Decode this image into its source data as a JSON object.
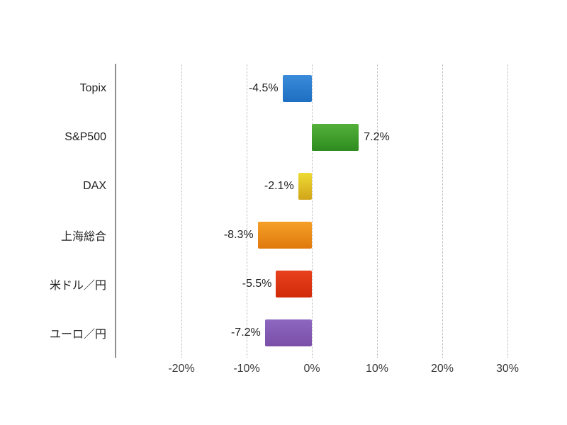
{
  "chart_data": {
    "type": "bar",
    "orientation": "horizontal",
    "title": "",
    "categories": [
      "Topix",
      "S&P500",
      "DAX",
      "上海総合",
      "米ドル／円",
      "ユーロ／円"
    ],
    "values": [
      -4.5,
      7.2,
      -2.1,
      -8.3,
      -5.5,
      -7.2
    ],
    "value_labels": [
      "-4.5%",
      "7.2%",
      "-2.1%",
      "-8.3%",
      "-5.5%",
      "-7.2%"
    ],
    "series": [
      {
        "name": "Topix",
        "value": -4.5,
        "label": "-4.5%",
        "color_top": "#3a8bd9",
        "color_bottom": "#1e6ec2"
      },
      {
        "name": "S&P500",
        "value": 7.2,
        "label": "7.2%",
        "color_top": "#54b039",
        "color_bottom": "#2e8c20"
      },
      {
        "name": "DAX",
        "value": -2.1,
        "label": "-2.1%",
        "color_top": "#eeda33",
        "color_bottom": "#d1a519"
      },
      {
        "name": "上海総合",
        "value": -8.3,
        "label": "-8.3%",
        "color_top": "#f5a027",
        "color_bottom": "#e0790d"
      },
      {
        "name": "米ドル／円",
        "value": -5.5,
        "label": "-5.5%",
        "color_top": "#e8421e",
        "color_bottom": "#d02a0a"
      },
      {
        "name": "ユーロ／円",
        "value": -7.2,
        "label": "-7.2%",
        "color_top": "#8d67c0",
        "color_bottom": "#7a4fa7"
      }
    ],
    "x_ticks": [
      {
        "label": "-20%",
        "value": -20
      },
      {
        "label": "-10%",
        "value": -10
      },
      {
        "label": "0%",
        "value": 0
      },
      {
        "label": "10%",
        "value": 10
      },
      {
        "label": "20%",
        "value": 20
      },
      {
        "label": "30%",
        "value": 30
      }
    ],
    "xlim": [
      -30.2,
      33
    ],
    "grid": "vertical-dotted",
    "legend": "none",
    "xlabel": "",
    "ylabel": "",
    "colors": {
      "axis": "#909090",
      "grid": "#b5b5b5",
      "category_text": "#222222",
      "value_text": "#1f1f1f",
      "tick_text": "#3a3a3a",
      "background": "#ffffff"
    }
  }
}
